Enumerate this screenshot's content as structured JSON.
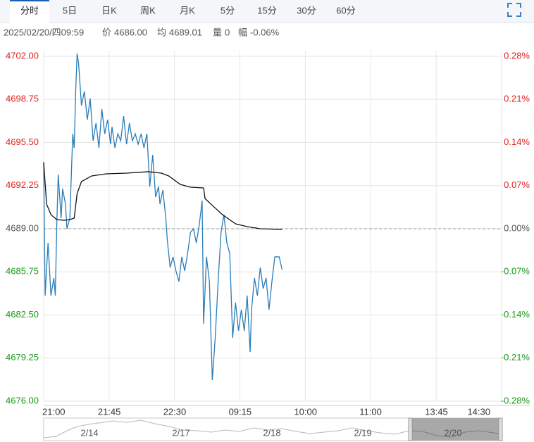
{
  "tabs": [
    "分时",
    "5日",
    "日K",
    "周K",
    "月K",
    "5分",
    "15分",
    "30分",
    "60分"
  ],
  "info": {
    "datetime": "2025/02/20/四09:59",
    "price_label": "价",
    "price": "4686.00",
    "avg_label": "均",
    "avg": "4689.01",
    "volume_label": "量",
    "volume": "0",
    "range_label": "幅",
    "range": "-0.06%"
  },
  "navigator": {
    "labels": [
      "2/14",
      "2/17",
      "2/18",
      "2/19",
      "2/20"
    ]
  },
  "chart_data": {
    "type": "line",
    "baseline": 4689,
    "ylim": [
      4676,
      4702
    ],
    "yticks": [
      {
        "value": 4702,
        "label": "4702.00"
      },
      {
        "value": 4698.75,
        "label": "4698.75"
      },
      {
        "value": 4695.5,
        "label": "4695.50"
      },
      {
        "value": 4692.25,
        "label": "4692.25"
      },
      {
        "value": 4689,
        "label": "4689.00"
      },
      {
        "value": 4685.75,
        "label": "4685.75"
      },
      {
        "value": 4682.5,
        "label": "4682.50"
      },
      {
        "value": 4679.25,
        "label": "4679.25"
      },
      {
        "value": 4676,
        "label": "4676.00"
      }
    ],
    "y2lim": [
      -0.28,
      0.28
    ],
    "y2ticks": [
      {
        "value": 0.28,
        "label": "0.28%"
      },
      {
        "value": 0.21,
        "label": "0.21%"
      },
      {
        "value": 0.14,
        "label": "0.14%"
      },
      {
        "value": 0.07,
        "label": "0.07%"
      },
      {
        "value": 0,
        "label": "0.00%"
      },
      {
        "value": -0.07,
        "label": "-0.07%"
      },
      {
        "value": -0.14,
        "label": "-0.14%"
      },
      {
        "value": -0.21,
        "label": "-0.21%"
      },
      {
        "value": -0.28,
        "label": "-0.28%"
      }
    ],
    "xlim": [
      0,
      315
    ],
    "xticks": [
      {
        "value": 0,
        "label": "21:00"
      },
      {
        "value": 45,
        "label": "21:45"
      },
      {
        "value": 90,
        "label": "22:30"
      },
      {
        "value": 135,
        "label": "09:15"
      },
      {
        "value": 180,
        "label": "10:00"
      },
      {
        "value": 225,
        "label": "11:00"
      },
      {
        "value": 270,
        "label": "13:45"
      },
      {
        "value": 315,
        "label": "14:30"
      }
    ],
    "grid": true,
    "series": [
      {
        "name": "价",
        "color": "#2a7db8",
        "x": [
          0,
          1,
          3,
          5,
          7,
          8,
          9,
          10,
          12,
          13,
          15,
          16,
          18,
          20,
          21,
          22,
          23,
          24,
          26,
          28,
          30,
          32,
          34,
          36,
          38,
          40,
          42,
          44,
          46,
          47,
          49,
          51,
          53,
          55,
          57,
          59,
          61,
          63,
          65,
          67,
          69,
          71,
          73,
          75,
          77,
          79,
          80,
          82,
          84,
          85,
          87,
          89,
          91,
          93,
          95,
          97,
          99,
          101,
          103,
          105,
          107,
          109,
          110,
          112,
          114,
          116,
          118,
          120,
          122,
          124,
          126,
          128,
          130,
          132,
          134,
          136,
          138,
          140,
          142,
          143,
          145,
          147,
          149,
          151,
          153,
          155,
          157,
          159,
          162,
          164
        ],
        "values": [
          4694.04,
          4683.96,
          4687.94,
          4683.96,
          4685.29,
          4683.96,
          4689.27,
          4693.09,
          4689.8,
          4692.02,
          4690.86,
          4689.0,
          4689.8,
          4696.16,
          4695.1,
          4699.35,
          4702.2,
          4701.47,
          4698.29,
          4699.35,
          4697.22,
          4698.82,
          4695.63,
          4696.96,
          4695.1,
          4698.02,
          4696.16,
          4697.22,
          4695.37,
          4696.69,
          4695.1,
          4696.16,
          4695.63,
          4697.49,
          4695.37,
          4696.96,
          4695.63,
          4696.16,
          4695.37,
          4696.16,
          4695.1,
          4696.16,
          4692.18,
          4694.57,
          4691.39,
          4692.18,
          4690.86,
          4691.92,
          4689.8,
          4688.2,
          4686.08,
          4686.88,
          4685.82,
          4685.02,
          4686.88,
          4685.82,
          4687.14,
          4688.73,
          4689.0,
          4687.94,
          4689.27,
          4691.12,
          4681.84,
          4686.88,
          4685.02,
          4677.59,
          4680.78,
          4685.02,
          4688.73,
          4690.06,
          4687.94,
          4687.14,
          4680.78,
          4683.43,
          4681.31,
          4682.9,
          4681.31,
          4683.96,
          4679.71,
          4682.9,
          4685.29,
          4683.96,
          4686.08,
          4684.49,
          4685.29,
          4682.9,
          4685.02,
          4686.88,
          4686.88,
          4685.92
        ]
      },
      {
        "name": "均",
        "color": "#111111",
        "x": [
          0,
          2,
          5,
          9,
          14,
          18,
          21,
          23,
          26,
          33,
          43,
          57,
          72,
          81,
          86,
          94,
          101,
          110,
          111,
          115,
          123,
          132,
          140,
          149,
          164
        ],
        "values": [
          4694.0,
          4690.86,
          4690.06,
          4689.69,
          4689.64,
          4689.69,
          4689.8,
          4691.65,
          4692.56,
          4692.98,
          4693.14,
          4693.19,
          4693.3,
          4693.19,
          4692.98,
          4692.34,
          4692.13,
          4692.08,
          4691.28,
          4690.86,
          4690.06,
          4689.37,
          4689.16,
          4689.0,
          4688.95
        ]
      }
    ]
  }
}
